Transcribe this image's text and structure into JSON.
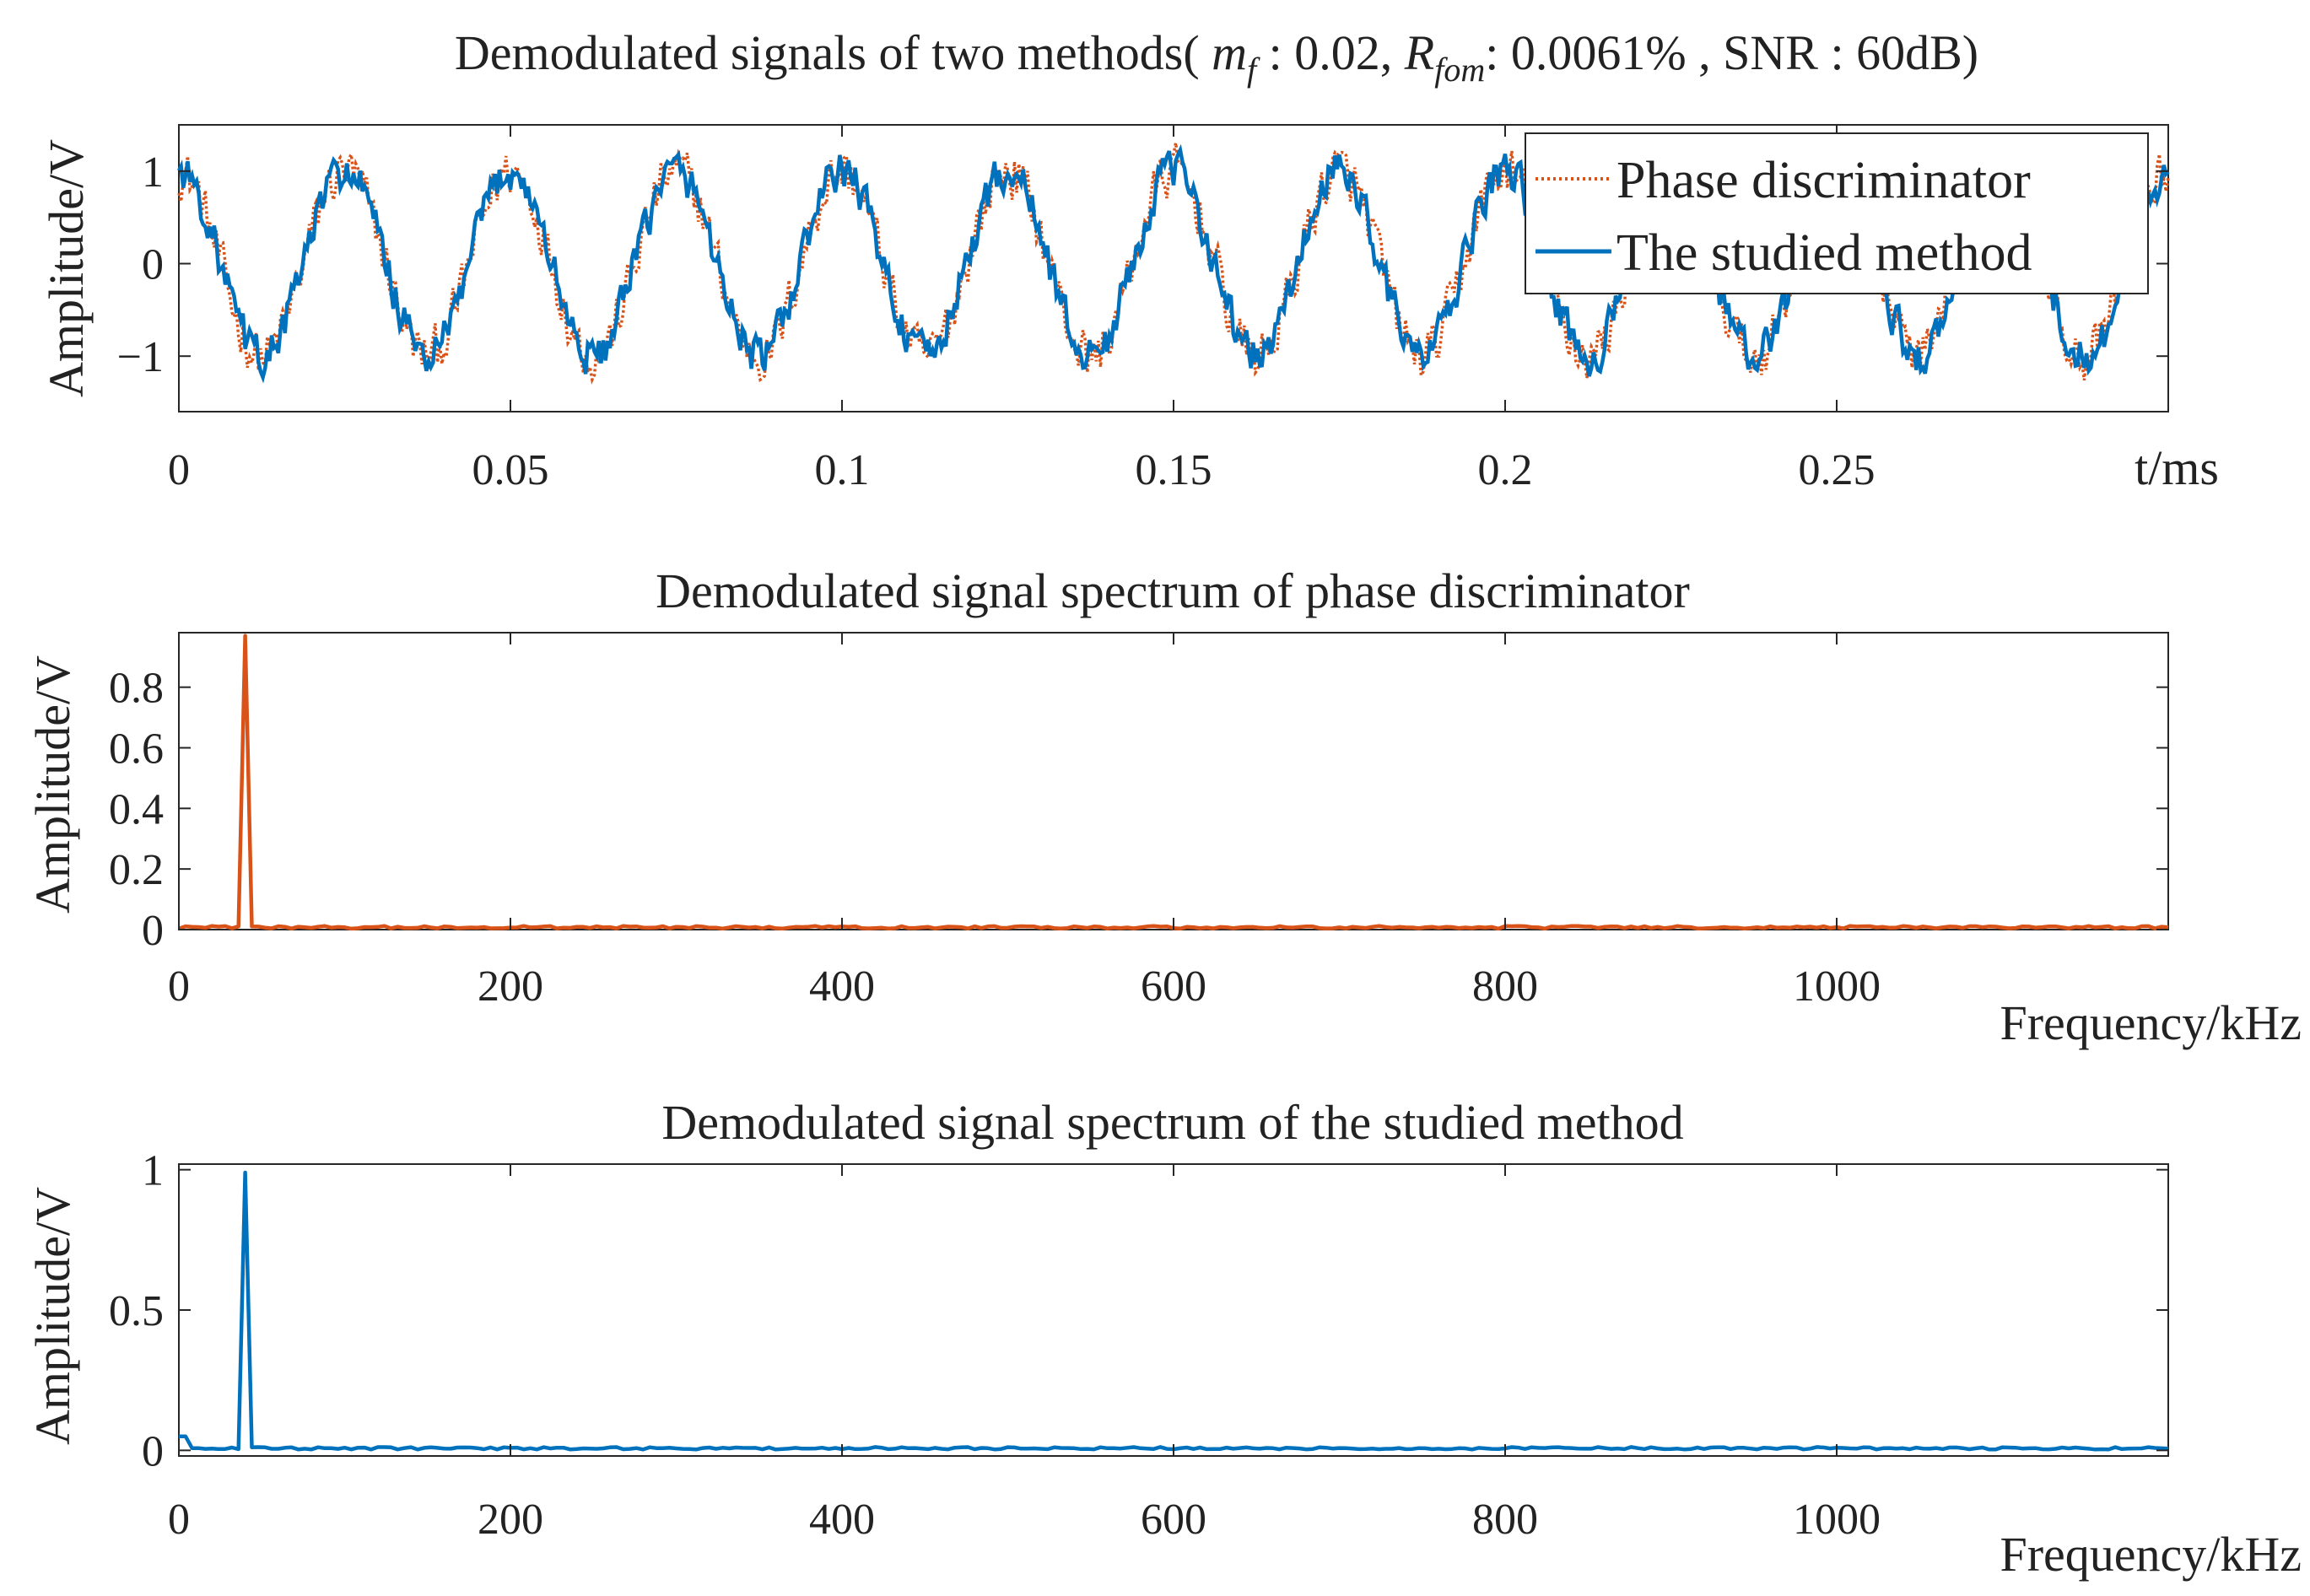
{
  "chart_data": [
    {
      "type": "line",
      "title_parts": [
        "Demodulated signals of two methods( ",
        "m",
        "f",
        " : 0.02, ",
        "R",
        "fom",
        ": 0.0061% , SNR : 60dB)"
      ],
      "xlabel": "t/ms",
      "ylabel": "Amplitude/V",
      "xlim": [
        0,
        0.3
      ],
      "ylim": [
        -1.6,
        1.5
      ],
      "xticks": [
        0,
        0.05,
        0.1,
        0.15,
        0.2,
        0.25
      ],
      "xtick_labels": [
        "0",
        "0.05",
        "0.1",
        "0.15",
        "0.2",
        "0.25"
      ],
      "yticks": [
        -1,
        0,
        1
      ],
      "ytick_labels": [
        "−1",
        "0",
        "1"
      ],
      "signal_model": {
        "form": "cos",
        "amplitude": 1.0,
        "frequency_kHz": 40,
        "noise_amplitude_approx": 0.25
      },
      "series": [
        {
          "name": "Phase discriminator",
          "color": "#D95319",
          "style": "dotted"
        },
        {
          "name": "The studied method",
          "color": "#0072BD",
          "style": "solid"
        }
      ],
      "legend": "top-right"
    },
    {
      "type": "line",
      "title": "Demodulated signal spectrum of phase discriminator",
      "xlabel": "Frequency/kHz",
      "ylabel": "Amplitude/V",
      "xlim": [
        0,
        1200
      ],
      "ylim": [
        0,
        0.98
      ],
      "xticks": [
        0,
        200,
        400,
        600,
        800,
        1000
      ],
      "xtick_labels": [
        "0",
        "200",
        "400",
        "600",
        "800",
        "1000"
      ],
      "yticks": [
        0,
        0.2,
        0.4,
        0.6,
        0.8
      ],
      "ytick_labels": [
        "0",
        "0.2",
        "0.4",
        "0.6",
        "0.8"
      ],
      "peak": {
        "x": 40,
        "y": 0.97
      },
      "noise_floor": 0.01,
      "series": [
        {
          "name": "Phase discriminator spectrum",
          "color": "#D95319"
        }
      ]
    },
    {
      "type": "line",
      "title": "Demodulated signal spectrum of the studied method",
      "xlabel": "Frequency/kHz",
      "ylabel": "Amplitude/V",
      "xlim": [
        0,
        1200
      ],
      "ylim": [
        -0.02,
        1.02
      ],
      "xticks": [
        0,
        200,
        400,
        600,
        800,
        1000
      ],
      "xtick_labels": [
        "0",
        "200",
        "400",
        "600",
        "800",
        "1000"
      ],
      "yticks": [
        0,
        0.5,
        1
      ],
      "ytick_labels": [
        "0",
        "0.5",
        "1"
      ],
      "peak": {
        "x": 40,
        "y": 0.99
      },
      "noise_floor": 0.01,
      "series": [
        {
          "name": "The studied method spectrum",
          "color": "#0072BD"
        }
      ]
    }
  ]
}
